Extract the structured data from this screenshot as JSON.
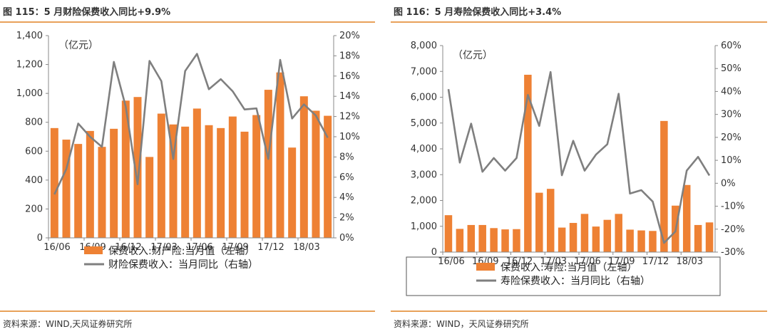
{
  "charts": [
    {
      "title": "图 115：5 月财险保费收入同比+9.9%",
      "source": "资料来源：WIND,天风证券研究所",
      "chart_data": {
        "type": "bar",
        "unit_label": "（亿元）",
        "categories": [
          "16/06",
          "16/07",
          "16/08",
          "16/09",
          "16/10",
          "16/11",
          "16/12",
          "17/01",
          "17/02",
          "17/03",
          "17/04",
          "17/05",
          "17/06",
          "17/07",
          "17/08",
          "17/09",
          "17/10",
          "17/11",
          "17/12",
          "18/01",
          "18/02",
          "18/03",
          "18/04",
          "18/05"
        ],
        "x_tick_labels": [
          "16/06",
          "16/09",
          "16/12",
          "17/03",
          "17/06",
          "17/09",
          "17/12",
          "18/03"
        ],
        "y_left": {
          "min": 0,
          "max": 1400,
          "ticks": [
            0,
            200,
            400,
            600,
            800,
            1000,
            1200,
            1400
          ],
          "tick_labels": [
            "0",
            "200",
            "400",
            "600",
            "800",
            "1,000",
            "1,200",
            "1,400"
          ]
        },
        "y_right": {
          "min": 0,
          "max": 20,
          "ticks": [
            0,
            2,
            4,
            6,
            8,
            10,
            12,
            14,
            16,
            18,
            20
          ],
          "tick_labels": [
            "0%",
            "2%",
            "4%",
            "6%",
            "8%",
            "10%",
            "12%",
            "14%",
            "16%",
            "18%",
            "20%"
          ]
        },
        "series": [
          {
            "name": "保费收入:财产险:当月值（左轴）",
            "type": "bar",
            "axis": "left",
            "color": "#ee8134",
            "values": [
              760,
              680,
              650,
              740,
              630,
              755,
              950,
              975,
              560,
              860,
              785,
              770,
              895,
              780,
              760,
              840,
              735,
              850,
              1025,
              1145,
              625,
              980,
              880,
              845
            ]
          },
          {
            "name": "财险保费收入：当月同比（右轴）",
            "type": "line",
            "axis": "right",
            "color": "#7f7f7f",
            "values": [
              4.3,
              6.8,
              11.3,
              10.0,
              9.0,
              17.4,
              13.0,
              5.3,
              17.5,
              15.5,
              7.8,
              16.5,
              18.2,
              14.7,
              15.7,
              14.5,
              12.7,
              12.8,
              7.8,
              17.6,
              11.8,
              13.2,
              12.1,
              9.9
            ]
          }
        ]
      }
    },
    {
      "title": "图 116：5 月寿险保费收入同比+3.4%",
      "source": "资料来源：WIND，天风证券研究所",
      "chart_data": {
        "type": "bar",
        "unit_label": "（亿元）",
        "categories": [
          "16/06",
          "16/07",
          "16/08",
          "16/09",
          "16/10",
          "16/11",
          "16/12",
          "17/01",
          "17/02",
          "17/03",
          "17/04",
          "17/05",
          "17/06",
          "17/07",
          "17/08",
          "17/09",
          "17/10",
          "17/11",
          "17/12",
          "18/01",
          "18/02",
          "18/03",
          "18/04",
          "18/05"
        ],
        "x_tick_labels": [
          "16/06",
          "16/09",
          "16/12",
          "17/03",
          "17/06",
          "17/09",
          "17/12",
          "18/03"
        ],
        "y_left": {
          "min": 0,
          "max": 8000,
          "ticks": [
            0,
            1000,
            2000,
            3000,
            4000,
            5000,
            6000,
            7000,
            8000
          ],
          "tick_labels": [
            "0",
            "1,000",
            "2,000",
            "3,000",
            "4,000",
            "5,000",
            "6,000",
            "7,000",
            "8,000"
          ]
        },
        "y_right": {
          "min": -30,
          "max": 60,
          "ticks": [
            -30,
            -20,
            -10,
            0,
            10,
            20,
            30,
            40,
            50,
            60
          ],
          "tick_labels": [
            "-30%",
            "-20%",
            "-10%",
            "0%",
            "10%",
            "20%",
            "30%",
            "40%",
            "50%",
            "60%"
          ]
        },
        "series": [
          {
            "name": "保费收入:寿险:当月值（左轴）",
            "type": "bar",
            "axis": "left",
            "color": "#ee8134",
            "values": [
              1430,
              900,
              1050,
              1050,
              930,
              880,
              890,
              6870,
              2300,
              2450,
              950,
              1130,
              1480,
              990,
              1250,
              1480,
              870,
              840,
              820,
              5080,
              1800,
              2600,
              1050,
              1150
            ]
          },
          {
            "name": "寿险保费收入：当月同比（右轴）",
            "type": "line",
            "axis": "right",
            "color": "#7f7f7f",
            "values": [
              41,
              9,
              26,
              5,
              11,
              5.5,
              11,
              38.5,
              25,
              48.5,
              3.5,
              18.5,
              5.5,
              12.5,
              17,
              39,
              -4.5,
              -3,
              -8,
              -26,
              -21,
              5.5,
              11.5,
              3.4
            ]
          }
        ]
      }
    }
  ]
}
